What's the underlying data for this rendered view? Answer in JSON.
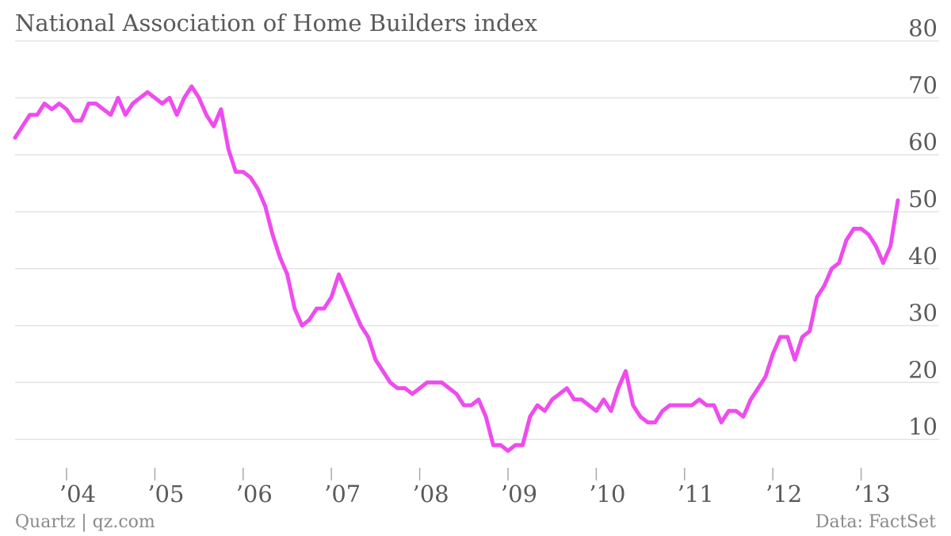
{
  "chart_data": {
    "type": "line",
    "title": "National Association of Home Builders index",
    "xlabel": "",
    "ylabel": "",
    "ylim": [
      0,
      80
    ],
    "yticks": [
      "10",
      "20",
      "30",
      "40",
      "50",
      "60",
      "70",
      "80"
    ],
    "yaxis_side": "right",
    "grid": true,
    "x_tick_labels": [
      {
        "label": "’04",
        "date": "2004-01"
      },
      {
        "label": "’05",
        "date": "2005-01"
      },
      {
        "label": "’06",
        "date": "2006-01"
      },
      {
        "label": "’07",
        "date": "2007-01"
      },
      {
        "label": "’08",
        "date": "2008-01"
      },
      {
        "label": "’09",
        "date": "2009-01"
      },
      {
        "label": "’10",
        "date": "2010-01"
      },
      {
        "label": "’11",
        "date": "2011-01"
      },
      {
        "label": "’12",
        "date": "2012-01"
      },
      {
        "label": "’13",
        "date": "2013-01"
      }
    ],
    "xlim": [
      "2003-06",
      "2013-06"
    ],
    "line_color": "#ee4cee",
    "series": [
      {
        "x": [
          "2003-06",
          "2003-07",
          "2003-08",
          "2003-09",
          "2003-10",
          "2003-11",
          "2003-12",
          "2004-01",
          "2004-02",
          "2004-03",
          "2004-04",
          "2004-05",
          "2004-06",
          "2004-07",
          "2004-08",
          "2004-09",
          "2004-10",
          "2004-11",
          "2004-12",
          "2005-01",
          "2005-02",
          "2005-03",
          "2005-04",
          "2005-05",
          "2005-06",
          "2005-07",
          "2005-08",
          "2005-09",
          "2005-10",
          "2005-11",
          "2005-12",
          "2006-01",
          "2006-02",
          "2006-03",
          "2006-04",
          "2006-05",
          "2006-06",
          "2006-07",
          "2006-08",
          "2006-09",
          "2006-10",
          "2006-11",
          "2006-12",
          "2007-01",
          "2007-02",
          "2007-03",
          "2007-04",
          "2007-05",
          "2007-06",
          "2007-07",
          "2007-08",
          "2007-09",
          "2007-10",
          "2007-11",
          "2007-12",
          "2008-01",
          "2008-02",
          "2008-03",
          "2008-04",
          "2008-05",
          "2008-06",
          "2008-07",
          "2008-08",
          "2008-09",
          "2008-10",
          "2008-11",
          "2008-12",
          "2009-01",
          "2009-02",
          "2009-03",
          "2009-04",
          "2009-05",
          "2009-06",
          "2009-07",
          "2009-08",
          "2009-09",
          "2009-10",
          "2009-11",
          "2009-12",
          "2010-01",
          "2010-02",
          "2010-03",
          "2010-04",
          "2010-05",
          "2010-06",
          "2010-07",
          "2010-08",
          "2010-09",
          "2010-10",
          "2010-11",
          "2010-12",
          "2011-01",
          "2011-02",
          "2011-03",
          "2011-04",
          "2011-05",
          "2011-06",
          "2011-07",
          "2011-08",
          "2011-09",
          "2011-10",
          "2011-11",
          "2011-12",
          "2012-01",
          "2012-02",
          "2012-03",
          "2012-04",
          "2012-05",
          "2012-06",
          "2012-07",
          "2012-08",
          "2012-09",
          "2012-10",
          "2012-11",
          "2012-12",
          "2013-01",
          "2013-02",
          "2013-03",
          "2013-04",
          "2013-05",
          "2013-06"
        ],
        "values": [
          63,
          65,
          67,
          67,
          69,
          68,
          69,
          68,
          66,
          66,
          69,
          69,
          68,
          67,
          70,
          67,
          69,
          70,
          71,
          70,
          69,
          70,
          67,
          70,
          72,
          70,
          67,
          65,
          68,
          61,
          57,
          57,
          56,
          54,
          51,
          46,
          42,
          39,
          33,
          30,
          31,
          33,
          33,
          35,
          39,
          36,
          33,
          30,
          28,
          24,
          22,
          20,
          19,
          19,
          18,
          19,
          20,
          20,
          20,
          19,
          18,
          16,
          16,
          17,
          14,
          9,
          9,
          8,
          9,
          9,
          14,
          16,
          15,
          17,
          18,
          19,
          17,
          17,
          16,
          15,
          17,
          15,
          19,
          22,
          16,
          14,
          13,
          13,
          15,
          16,
          16,
          16,
          16,
          17,
          16,
          16,
          13,
          15,
          15,
          14,
          17,
          19,
          21,
          25,
          28,
          28,
          24,
          28,
          29,
          35,
          37,
          40,
          41,
          45,
          47,
          47,
          46,
          44,
          41,
          44,
          52
        ]
      }
    ]
  },
  "footer": {
    "source_left": "Quartz | qz.com",
    "source_right": "Data: FactSet"
  }
}
